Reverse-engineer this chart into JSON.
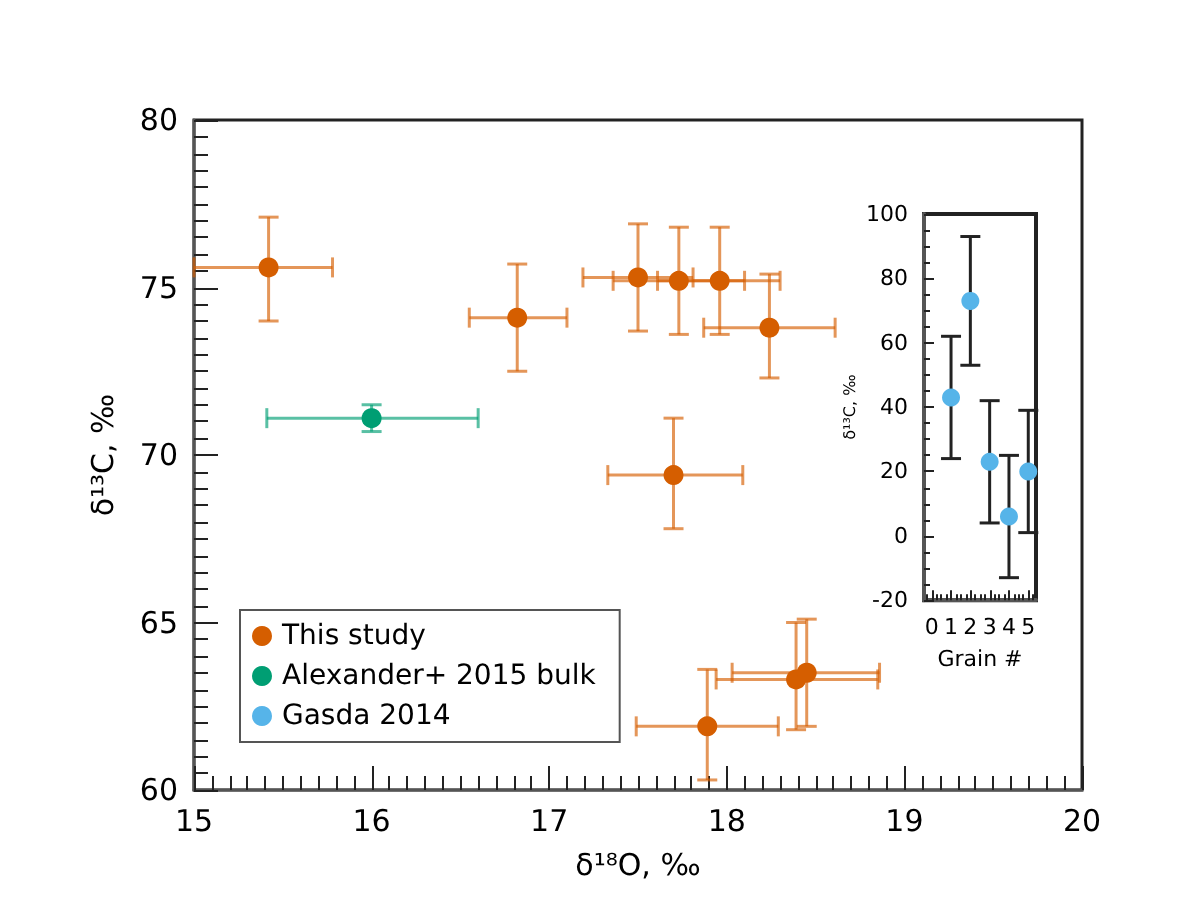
{
  "chart_data": [
    {
      "type": "scatter",
      "xlabel": "δ¹⁸O, ‰",
      "ylabel": "δ¹³C, ‰",
      "xlim": [
        15,
        20
      ],
      "xticks": [
        15,
        16,
        17,
        18,
        19,
        20
      ],
      "ylim": [
        60,
        80
      ],
      "yticks": [
        60,
        65,
        70,
        75,
        80
      ],
      "grid": false,
      "legend": "bottom left",
      "marker": "circle",
      "series": [
        {
          "name": "This study",
          "color": "#d55e00",
          "x": [
            15.42,
            16.82,
            17.5,
            17.73,
            17.96,
            18.24,
            17.7,
            17.89,
            18.39,
            18.45
          ],
          "values": [
            75.6,
            74.1,
            75.3,
            75.2,
            75.2,
            73.8,
            69.4,
            61.9,
            63.3,
            63.5
          ],
          "xerrors": [
            [
              15.0,
              15.78
            ],
            [
              16.55,
              17.1
            ],
            [
              17.19,
              17.81
            ],
            [
              17.36,
              18.1
            ],
            [
              17.61,
              18.3
            ],
            [
              17.87,
              18.61
            ],
            [
              17.33,
              18.09
            ],
            [
              17.49,
              18.29
            ],
            [
              17.94,
              18.85
            ],
            [
              18.03,
              18.86
            ]
          ],
          "errors": [
            [
              74.0,
              77.1
            ],
            [
              72.5,
              75.7
            ],
            [
              73.7,
              76.9
            ],
            [
              73.6,
              76.8
            ],
            [
              73.6,
              76.8
            ],
            [
              72.3,
              75.4
            ],
            [
              67.8,
              71.1
            ],
            [
              60.3,
              63.6
            ],
            [
              61.8,
              65.0
            ],
            [
              61.9,
              65.1
            ]
          ]
        },
        {
          "name": "Alexander+ 2015 bulk",
          "color": "#009e73",
          "x": [
            16.0
          ],
          "values": [
            71.1
          ],
          "xerrors": [
            [
              15.41,
              16.6
            ]
          ],
          "errors": [
            [
              70.7,
              71.5
            ]
          ]
        },
        {
          "name": "Gasda 2014",
          "color": "#56b4e9"
        }
      ]
    },
    {
      "type": "scatter",
      "xlabel": "Grain #",
      "ylabel": "δ¹³C, ‰",
      "xlim": [
        -0.4,
        5.4
      ],
      "xticks": [
        0,
        1,
        2,
        3,
        4,
        5
      ],
      "ylim": [
        -20,
        100
      ],
      "yticks": [
        -20,
        0,
        20,
        40,
        60,
        80,
        100
      ],
      "grid": false,
      "marker": "circle",
      "series": [
        {
          "color": "#56b4e9",
          "x": [
            1,
            2,
            3,
            4,
            5
          ],
          "values": [
            43,
            73,
            23,
            6,
            20
          ],
          "errors": [
            [
              24,
              62
            ],
            [
              53,
              93
            ],
            [
              4,
              42
            ],
            [
              -13,
              25
            ],
            [
              1,
              39
            ]
          ]
        }
      ]
    }
  ]
}
